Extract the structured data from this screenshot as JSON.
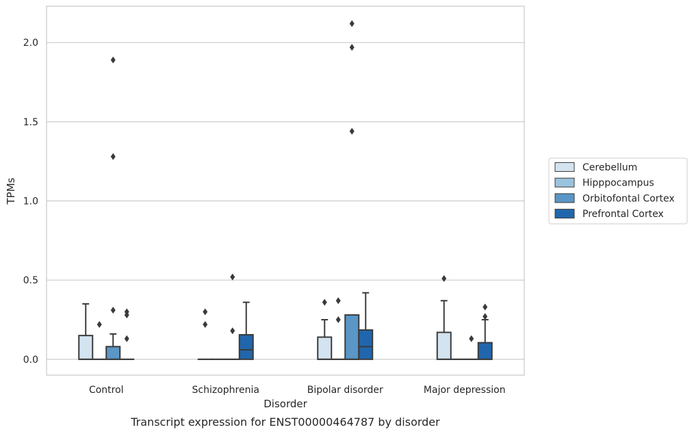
{
  "chart_data": {
    "type": "box",
    "caption": "Transcript expression for ENST00000464787 by disorder",
    "xlabel": "Disorder",
    "ylabel": "TPMs",
    "ylim": [
      -0.1,
      2.23
    ],
    "yticks": [
      "0.0",
      "0.5",
      "1.0",
      "1.5",
      "2.0"
    ],
    "ytick_values": [
      0.0,
      0.5,
      1.0,
      1.5,
      2.0
    ],
    "grid": "horizontal",
    "legend_position": "right",
    "categories": [
      "Control",
      "Schizophrenia",
      "Bipolar disorder",
      "Major depression"
    ],
    "series": [
      {
        "name": "Cerebellum",
        "color": "#d3e3f0",
        "boxes": [
          {
            "q1": 0,
            "median": 0,
            "q3": 0.15,
            "whisker_low": 0,
            "whisker_high": 0.35,
            "outliers": []
          },
          {
            "q1": 0,
            "median": 0,
            "q3": 0,
            "whisker_low": 0,
            "whisker_high": 0,
            "outliers": [
              0.22,
              0.3
            ]
          },
          {
            "q1": 0,
            "median": 0,
            "q3": 0.14,
            "whisker_low": 0,
            "whisker_high": 0.25,
            "outliers": [
              0.36
            ]
          },
          {
            "q1": 0,
            "median": 0,
            "q3": 0.17,
            "whisker_low": 0,
            "whisker_high": 0.37,
            "outliers": [
              0.51
            ]
          }
        ]
      },
      {
        "name": "Hipppocampus",
        "color": "#9ac3de",
        "boxes": [
          {
            "q1": 0,
            "median": 0,
            "q3": 0,
            "whisker_low": 0,
            "whisker_high": 0,
            "outliers": [
              0.22
            ]
          },
          {
            "q1": 0,
            "median": 0,
            "q3": 0,
            "whisker_low": 0,
            "whisker_high": 0,
            "outliers": []
          },
          {
            "q1": 0,
            "median": 0,
            "q3": 0,
            "whisker_low": 0,
            "whisker_high": 0,
            "outliers": [
              0.25,
              0.37
            ]
          },
          {
            "q1": 0,
            "median": 0,
            "q3": 0,
            "whisker_low": 0,
            "whisker_high": 0,
            "outliers": []
          }
        ]
      },
      {
        "name": "Orbitofontal Cortex",
        "color": "#5a96c6",
        "boxes": [
          {
            "q1": 0,
            "median": 0,
            "q3": 0.08,
            "whisker_low": 0,
            "whisker_high": 0.16,
            "outliers": [
              0.31,
              1.28,
              1.89
            ]
          },
          {
            "q1": 0,
            "median": 0,
            "q3": 0,
            "whisker_low": 0,
            "whisker_high": 0,
            "outliers": [
              0.18,
              0.52
            ]
          },
          {
            "q1": 0,
            "median": 0,
            "q3": 0.28,
            "whisker_low": 0,
            "whisker_high": 0.28,
            "outliers": [
              1.44,
              1.97,
              2.12
            ]
          },
          {
            "q1": 0,
            "median": 0,
            "q3": 0,
            "whisker_low": 0,
            "whisker_high": 0,
            "outliers": [
              0.13
            ]
          }
        ]
      },
      {
        "name": "Prefrontal Cortex",
        "color": "#2166ac",
        "boxes": [
          {
            "q1": 0,
            "median": 0,
            "q3": 0,
            "whisker_low": 0,
            "whisker_high": 0,
            "outliers": [
              0.13,
              0.28,
              0.3
            ]
          },
          {
            "q1": 0,
            "median": 0.06,
            "q3": 0.155,
            "whisker_low": 0,
            "whisker_high": 0.36,
            "outliers": []
          },
          {
            "q1": 0,
            "median": 0.08,
            "q3": 0.185,
            "whisker_low": 0,
            "whisker_high": 0.42,
            "outliers": []
          },
          {
            "q1": 0,
            "median": 0,
            "q3": 0.105,
            "whisker_low": 0,
            "whisker_high": 0.25,
            "outliers": [
              0.27,
              0.33
            ]
          }
        ]
      }
    ]
  }
}
